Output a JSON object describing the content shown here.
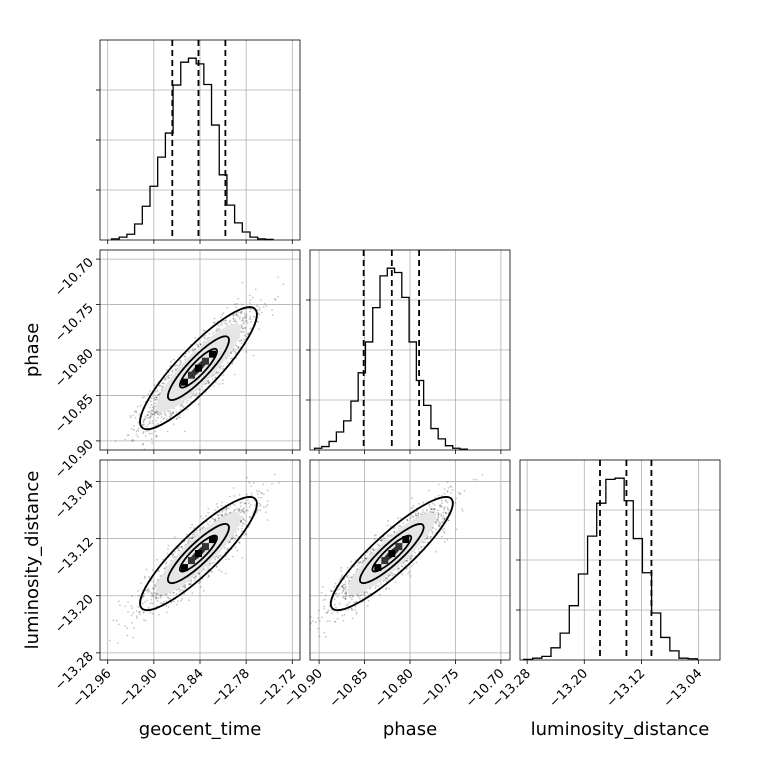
{
  "chart_data": {
    "type": "corner",
    "parameters": [
      "geocent_time",
      "phase",
      "luminosity_distance"
    ],
    "ticks": {
      "geocent_time": [
        "−12.96",
        "−12.90",
        "−12.84",
        "−12.78",
        "−12.72"
      ],
      "phase": [
        "−10.90",
        "−10.85",
        "−10.80",
        "−10.75",
        "−10.70"
      ],
      "luminosity_distance": [
        "−13.28",
        "−13.20",
        "−13.12",
        "−13.04"
      ]
    },
    "tick_values": {
      "geocent_time": [
        -12.96,
        -12.9,
        -12.84,
        -12.78,
        -12.72
      ],
      "phase": [
        -10.9,
        -10.85,
        -10.8,
        -10.75,
        -10.7
      ],
      "luminosity_distance": [
        -13.28,
        -13.2,
        -13.12,
        -13.04
      ]
    },
    "ranges": {
      "geocent_time": [
        -12.97,
        -12.71
      ],
      "phase": [
        -10.91,
        -10.69
      ],
      "luminosity_distance": [
        -13.29,
        -13.01
      ]
    },
    "histograms": {
      "geocent_time": {
        "edges_start": -12.955,
        "bin_width": 0.01,
        "counts": [
          0.2,
          0.5,
          1,
          2.8,
          5.9,
          9.4,
          14.5,
          18.7,
          27.1,
          31.1,
          31.8,
          30.8,
          27.2,
          20.1,
          11.4,
          6.1,
          3,
          1.4,
          0.5,
          0.2,
          0.1
        ]
      },
      "phase": {
        "edges_start": -10.905,
        "bin_width": 0.008,
        "counts": [
          0.2,
          0.4,
          1,
          2.1,
          3.4,
          5.7,
          9,
          12.6,
          16.6,
          20.3,
          21.2,
          20.7,
          17.8,
          12.6,
          8.1,
          5.2,
          2.5,
          1.3,
          0.5,
          0.2,
          0.1
        ]
      },
      "luminosity_distance": {
        "edges_start": -13.285,
        "bin_width": 0.0128,
        "counts": [
          0.1,
          0.3,
          0.6,
          2,
          4.4,
          8.9,
          14.1,
          20.3,
          25.7,
          29.6,
          29.8,
          26.1,
          19.9,
          14.3,
          7.7,
          3.7,
          1.5,
          0.3,
          0.2
        ]
      }
    },
    "quantiles": {
      "geocent_time": [
        -12.876,
        -12.842,
        -12.807
      ],
      "phase": [
        -10.851,
        -10.82,
        -10.79
      ],
      "luminosity_distance": [
        -13.178,
        -13.141,
        -13.106
      ]
    },
    "correlations": {
      "phase|geocent_time": 0.88,
      "luminosity_distance|geocent_time": 0.88,
      "luminosity_distance|phase": 0.89
    },
    "grid": true
  }
}
